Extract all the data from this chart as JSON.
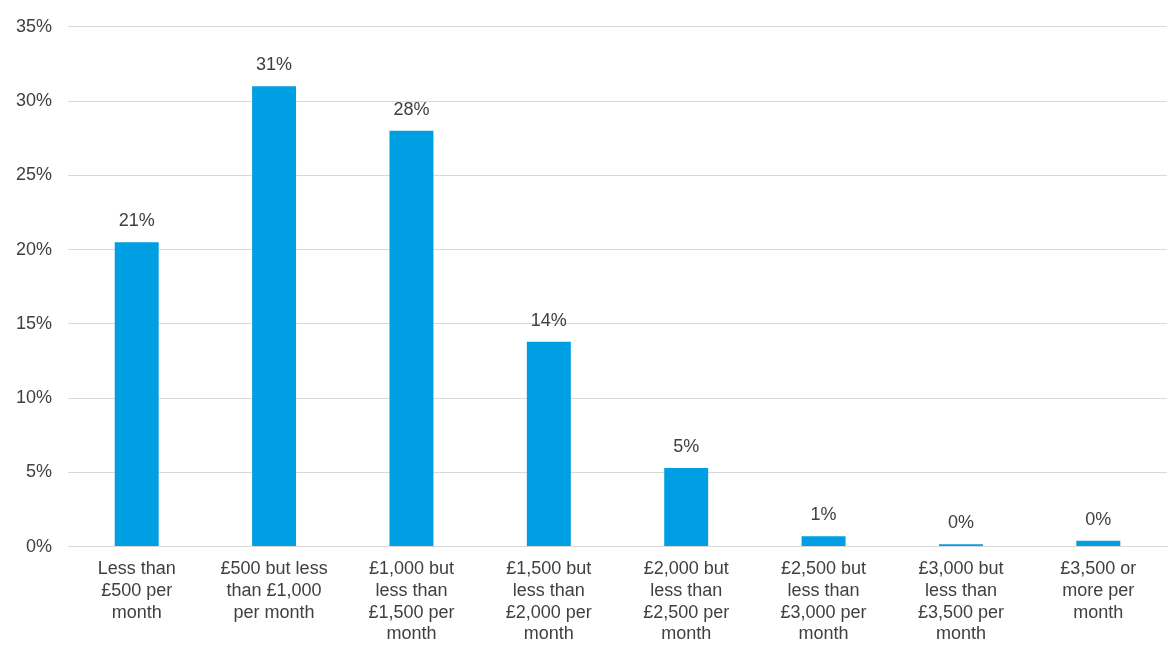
{
  "chart_data": {
    "type": "bar",
    "categories": [
      "Less than\n£500 per\nmonth",
      "£500 but less\nthan £1,000\nper month",
      "£1,000 but\nless than\n£1,500 per\nmonth",
      "£1,500 but\nless than\n£2,000 per\nmonth",
      "£2,000 but\nless than\n£2,500 per\nmonth",
      "£2,500 but\nless than\n£3,000 per\nmonth",
      "£3,000 but\nless than\n£3,500 per\nmonth",
      "£3,500 or\nmore per\nmonth"
    ],
    "values": [
      20.5,
      31,
      28,
      13.8,
      5.3,
      0.7,
      0.15,
      0.4
    ],
    "value_labels": [
      "21%",
      "31%",
      "28%",
      "14%",
      "5%",
      "1%",
      "0%",
      "0%"
    ],
    "color": "#009fe3",
    "ylim": [
      0,
      35
    ],
    "yticks": [
      {
        "value": 0,
        "label": "0%"
      },
      {
        "value": 5,
        "label": "5%"
      },
      {
        "value": 10,
        "label": "10%"
      },
      {
        "value": 15,
        "label": "15%"
      },
      {
        "value": 20,
        "label": "20%"
      },
      {
        "value": 25,
        "label": "25%"
      },
      {
        "value": 30,
        "label": "30%"
      },
      {
        "value": 35,
        "label": "35%"
      }
    ],
    "grid": "y"
  }
}
